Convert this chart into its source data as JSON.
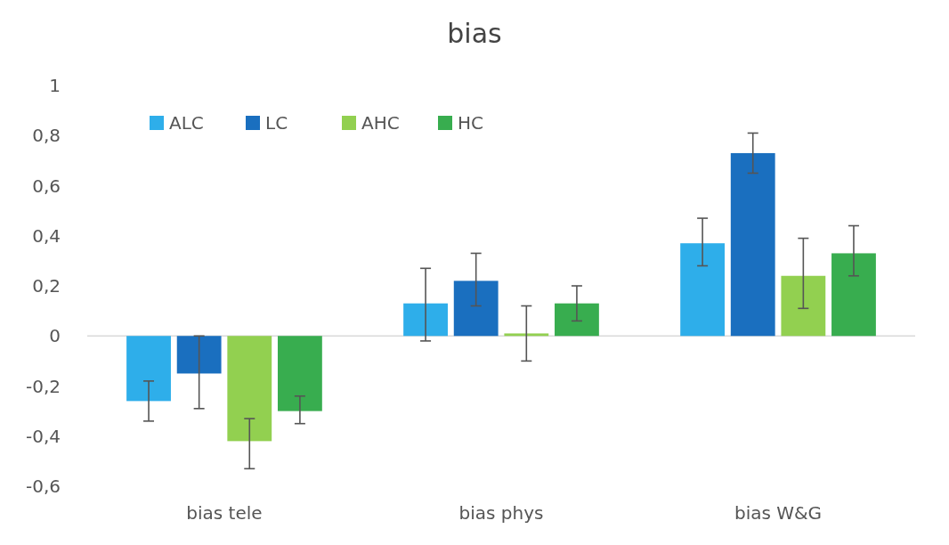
{
  "chart_data": {
    "type": "bar",
    "title": "bias",
    "categories": [
      "bias tele",
      "bias phys",
      "bias W&G"
    ],
    "series": [
      {
        "name": "ALC",
        "color": "#2eaeea",
        "values": [
          -0.26,
          0.13,
          0.37
        ],
        "errors": [
          [
            -0.34,
            -0.18
          ],
          [
            -0.02,
            0.27
          ],
          [
            0.28,
            0.47
          ]
        ]
      },
      {
        "name": "LC",
        "color": "#1a6fbf",
        "values": [
          -0.15,
          0.22,
          0.73
        ],
        "errors": [
          [
            -0.29,
            0
          ],
          [
            0.12,
            0.33
          ],
          [
            0.65,
            0.81
          ]
        ]
      },
      {
        "name": "AHC",
        "color": "#92d050",
        "values": [
          -0.42,
          0.01,
          0.24
        ],
        "errors": [
          [
            -0.53,
            -0.33
          ],
          [
            -0.1,
            0.12
          ],
          [
            0.11,
            0.39
          ]
        ]
      },
      {
        "name": "HC",
        "color": "#38ad4f",
        "values": [
          -0.3,
          0.13,
          0.33
        ],
        "errors": [
          [
            -0.35,
            -0.24
          ],
          [
            0.06,
            0.2
          ],
          [
            0.24,
            0.44
          ]
        ]
      }
    ],
    "ylim": [
      -0.6,
      1
    ],
    "yticks": [
      {
        "value": -0.6,
        "label": "-0,6"
      },
      {
        "value": -0.4,
        "label": "-0,4"
      },
      {
        "value": -0.2,
        "label": "-0,2"
      },
      0,
      {
        "value": 0.2,
        "label": "0,2"
      },
      {
        "value": 0.4,
        "label": "0,4"
      },
      {
        "value": 0.6,
        "label": "0,6"
      },
      {
        "value": 0.8,
        "label": "0,8"
      },
      1
    ],
    "legend": "top left"
  }
}
